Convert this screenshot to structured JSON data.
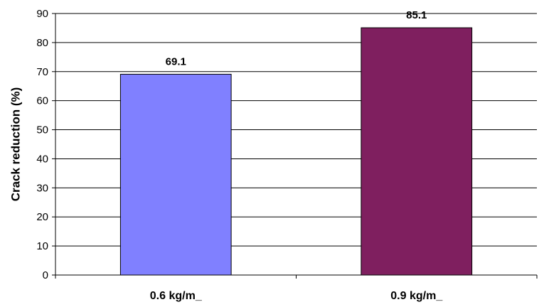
{
  "chart_data": {
    "type": "bar",
    "categories": [
      "0.6 kg/m_",
      "0.9 kg/m_"
    ],
    "values": [
      69.1,
      85.1
    ],
    "data_labels": [
      "69.1",
      "85.1"
    ],
    "bar_colors": [
      "#8080ff",
      "#7f1f5f"
    ],
    "title": "",
    "xlabel": "",
    "ylabel": "Crack reduction (%)",
    "ylim": [
      0,
      90
    ],
    "yticks": [
      0,
      10,
      20,
      30,
      40,
      50,
      60,
      70,
      80,
      90
    ],
    "grid": true,
    "legend": "none"
  }
}
